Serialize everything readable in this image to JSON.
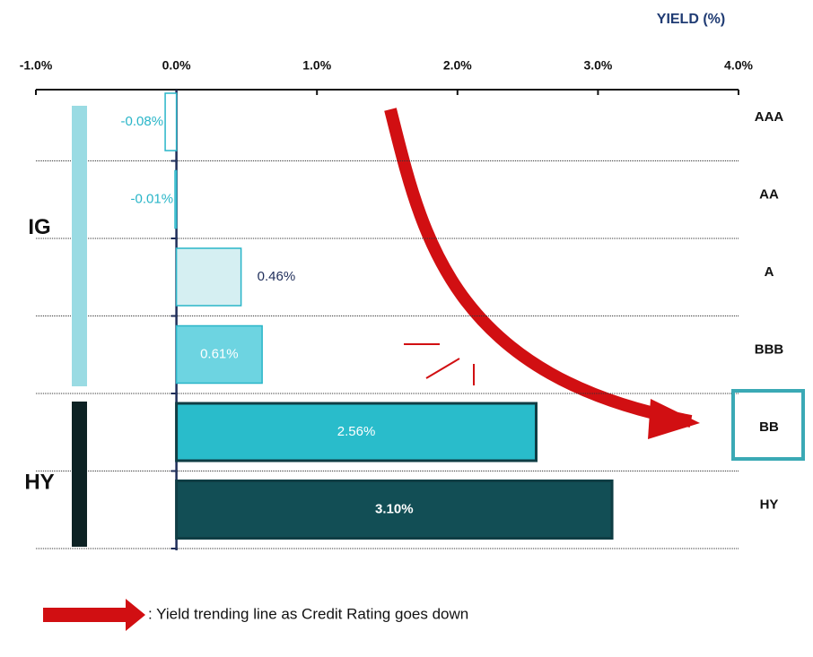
{
  "chart_data": {
    "type": "bar",
    "orientation": "horizontal",
    "x_label": "YIELD (%)",
    "categories": [
      "AAA",
      "AA",
      "A",
      "BBB",
      "BB",
      "HY"
    ],
    "values": [
      -0.08,
      -0.01,
      0.46,
      0.61,
      2.56,
      3.1
    ],
    "value_labels": [
      "-0.08%",
      "-0.01%",
      "0.46%",
      "0.61%",
      "2.56%",
      "3.10%"
    ],
    "colors": [
      "#ffffff",
      "#ffffff",
      "#d5eff2",
      "#6dd4e1",
      "#29bccb",
      "#124e55"
    ],
    "border_colors": [
      "#29b5c8",
      "#29b5c8",
      "#29b5c8",
      "#29b5c8",
      "#0f3d44",
      "#0f3d44"
    ],
    "xlim": [
      -1,
      4
    ],
    "xticks": [
      {
        "value": -1,
        "label": "-1.0%"
      },
      {
        "value": 0,
        "label": "0.0%"
      },
      {
        "value": 1,
        "label": "1.0%"
      },
      {
        "value": 2,
        "label": "2.0%"
      },
      {
        "value": 3,
        "label": "3.0%"
      },
      {
        "value": 4,
        "label": "4.0%"
      }
    ],
    "groups": [
      {
        "name": "IG",
        "color": "#9adbe3"
      },
      {
        "name": "HY",
        "color": "#0d2224"
      }
    ],
    "highlight": "BB",
    "legend_note": ": Yield trending line as Credit Rating goes down"
  }
}
